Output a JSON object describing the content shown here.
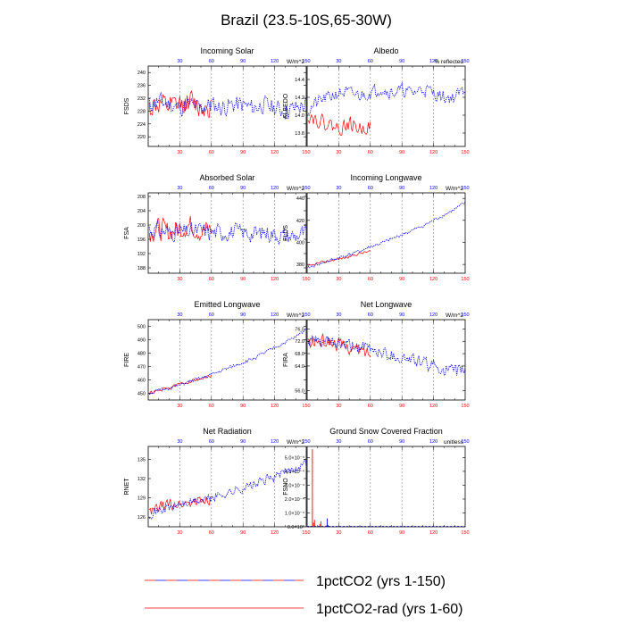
{
  "figure": {
    "title": "Brazil (23.5-10S,65-30W)",
    "legend": [
      {
        "label": "1pctCO2 (yrs 1-150)",
        "color": "#0000ff",
        "style": "dashed"
      },
      {
        "label": "1pctCO2-rad (yrs 1-60)",
        "color": "#ff0000",
        "style": "solid"
      }
    ]
  },
  "colors": {
    "series_1pctCO2": "#0000ff",
    "series_rad": "#ff0000",
    "axis": "#000000",
    "grid": "#888888"
  },
  "chart_data": [
    {
      "type": "line",
      "title": "Incoming Solar",
      "ylabel": "FSDS",
      "units": "W/m^2",
      "xlim": [
        0,
        150
      ],
      "ylim": [
        217,
        242
      ],
      "yticks": [
        220,
        224,
        228,
        232,
        236,
        240
      ],
      "ytick_labels": [
        "220",
        "224",
        "228",
        "232",
        "236",
        "240"
      ],
      "xticks_top": [
        30,
        60,
        90,
        120,
        150
      ],
      "xticks_bottom": [
        30,
        60,
        90,
        120,
        150
      ],
      "series": [
        {
          "key": "b",
          "x_end": 150,
          "y_anchor_x": [
            1,
            10,
            20,
            30,
            40,
            50,
            60,
            70,
            80,
            90,
            100,
            110,
            120,
            130,
            140,
            150
          ],
          "y_anchor": [
            230,
            231,
            230,
            229,
            230,
            229,
            230,
            229,
            230,
            230,
            229,
            230,
            229,
            228,
            229,
            230
          ],
          "amp": 4.5,
          "seed": 11
        },
        {
          "key": "r",
          "x_end": 60,
          "y_anchor_x": [
            1,
            10,
            20,
            30,
            40,
            50,
            60
          ],
          "y_anchor": [
            229,
            230,
            229,
            230,
            231,
            229,
            230
          ],
          "amp": 6,
          "seed": 12
        }
      ]
    },
    {
      "type": "line",
      "title": "Albedo",
      "ylabel": "ALBEDO",
      "units": "% reflected",
      "xlim": [
        0,
        150
      ],
      "ylim": [
        13.65,
        14.55
      ],
      "yticks": [
        13.8,
        14.0,
        14.2,
        14.4
      ],
      "ytick_labels": [
        "13.8",
        "14.0",
        "14.2",
        "14.4"
      ],
      "xticks_top": [
        30,
        60,
        90,
        120,
        150
      ],
      "xticks_bottom": [
        30,
        60,
        90,
        120,
        150
      ],
      "series": [
        {
          "key": "b",
          "x_end": 150,
          "y_anchor_x": [
            1,
            10,
            20,
            30,
            40,
            50,
            60,
            70,
            80,
            90,
            100,
            110,
            120,
            130,
            140,
            150
          ],
          "y_anchor": [
            14.05,
            14.15,
            14.2,
            14.25,
            14.25,
            14.22,
            14.25,
            14.3,
            14.25,
            14.28,
            14.25,
            14.3,
            14.25,
            14.2,
            14.2,
            14.3
          ],
          "amp": 0.12,
          "seed": 21
        },
        {
          "key": "r",
          "x_end": 60,
          "y_anchor_x": [
            1,
            10,
            20,
            30,
            40,
            50,
            60
          ],
          "y_anchor": [
            14.0,
            13.95,
            13.9,
            13.85,
            13.9,
            13.85,
            13.88
          ],
          "amp": 0.13,
          "seed": 22
        }
      ]
    },
    {
      "type": "line",
      "title": "Absorbed Solar",
      "ylabel": "FSA",
      "units": "W/m^2",
      "xlim": [
        0,
        150
      ],
      "ylim": [
        186.5,
        209
      ],
      "yticks": [
        188,
        192,
        196,
        200,
        204,
        208
      ],
      "ytick_labels": [
        "188",
        "192",
        "196",
        "200",
        "204",
        "208"
      ],
      "xticks_top": [
        30,
        60,
        90,
        120,
        150
      ],
      "xticks_bottom": [
        30,
        60,
        90,
        120,
        150
      ],
      "series": [
        {
          "key": "b",
          "x_end": 150,
          "y_anchor_x": [
            1,
            10,
            20,
            30,
            40,
            50,
            60,
            70,
            80,
            90,
            100,
            110,
            120,
            130,
            140,
            150
          ],
          "y_anchor": [
            199,
            198.5,
            198,
            198,
            198,
            198.5,
            198,
            198,
            198,
            198,
            197.5,
            198,
            197.5,
            197,
            197,
            198
          ],
          "amp": 4,
          "seed": 31
        },
        {
          "key": "r",
          "x_end": 60,
          "y_anchor_x": [
            1,
            10,
            20,
            30,
            40,
            50,
            60
          ],
          "y_anchor": [
            198,
            199,
            198,
            199,
            200,
            198,
            199
          ],
          "amp": 5,
          "seed": 32
        }
      ]
    },
    {
      "type": "line",
      "title": "Incoming Longwave",
      "ylabel": "FLDS",
      "units": "W/m^2",
      "xlim": [
        0,
        150
      ],
      "ylim": [
        372,
        445
      ],
      "yticks": [
        380,
        400,
        420,
        440
      ],
      "ytick_labels": [
        "380",
        "400",
        "420",
        "440"
      ],
      "xticks_top": [
        30,
        60,
        90,
        120,
        150
      ],
      "xticks_bottom": [
        30,
        60,
        90,
        120,
        150
      ],
      "series": [
        {
          "key": "b",
          "x_end": 150,
          "y_anchor_x": [
            1,
            10,
            20,
            30,
            40,
            50,
            60,
            70,
            80,
            90,
            100,
            110,
            120,
            130,
            140,
            150
          ],
          "y_anchor": [
            377,
            380,
            383,
            386,
            389,
            392,
            396,
            399,
            403,
            407,
            411,
            415,
            420,
            425,
            430,
            436
          ],
          "amp": 2.5,
          "seed": 41
        },
        {
          "key": "r",
          "x_end": 60,
          "y_anchor_x": [
            1,
            10,
            20,
            30,
            40,
            50,
            60
          ],
          "y_anchor": [
            378,
            381,
            383,
            385,
            387,
            390,
            392
          ],
          "amp": 2,
          "seed": 42
        }
      ]
    },
    {
      "type": "line",
      "title": "Emitted Longwave",
      "ylabel": "FIRE",
      "units": "W/m^2",
      "xlim": [
        0,
        150
      ],
      "ylim": [
        445,
        505
      ],
      "yticks": [
        450,
        460,
        470,
        480,
        490,
        500
      ],
      "ytick_labels": [
        "450",
        "460",
        "470",
        "480",
        "490",
        "500"
      ],
      "xticks_top": [
        30,
        60,
        90,
        120,
        150
      ],
      "xticks_bottom": [
        30,
        60,
        90,
        120,
        150
      ],
      "series": [
        {
          "key": "b",
          "x_end": 150,
          "y_anchor_x": [
            1,
            10,
            20,
            30,
            40,
            50,
            60,
            70,
            80,
            90,
            100,
            110,
            120,
            130,
            140,
            150
          ],
          "y_anchor": [
            450,
            452,
            454,
            456,
            459,
            461,
            464,
            467,
            470,
            473,
            476,
            480,
            484,
            488,
            492,
            498
          ],
          "amp": 2.2,
          "seed": 51
        },
        {
          "key": "r",
          "x_end": 60,
          "y_anchor_x": [
            1,
            10,
            20,
            30,
            40,
            50,
            60
          ],
          "y_anchor": [
            450,
            452,
            454,
            457,
            459,
            461,
            463
          ],
          "amp": 2,
          "seed": 52
        }
      ]
    },
    {
      "type": "line",
      "title": "Net Longwave",
      "ylabel": "FIRA",
      "units": "W/m^2",
      "xlim": [
        0,
        150
      ],
      "ylim": [
        53,
        79
      ],
      "yticks": [
        56.0,
        64.0,
        68.0,
        72.0,
        76.0
      ],
      "ytick_labels": [
        "56.0",
        "64.0",
        "68.0",
        "72.0",
        "76.0"
      ],
      "xticks_top": [
        30,
        60,
        90,
        120,
        150
      ],
      "xticks_bottom": [
        30,
        60,
        90,
        120,
        150
      ],
      "series": [
        {
          "key": "b",
          "x_end": 150,
          "y_anchor_x": [
            1,
            10,
            20,
            30,
            40,
            50,
            60,
            70,
            80,
            90,
            100,
            110,
            120,
            130,
            140,
            150
          ],
          "y_anchor": [
            72,
            72,
            71.5,
            71,
            70.5,
            70,
            69.5,
            68.5,
            67.5,
            66.5,
            66,
            65,
            64,
            63,
            62,
            63
          ],
          "amp": 3.5,
          "seed": 61
        },
        {
          "key": "r",
          "x_end": 60,
          "y_anchor_x": [
            1,
            10,
            20,
            30,
            40,
            50,
            60
          ],
          "y_anchor": [
            71,
            72,
            72,
            71,
            70,
            69,
            68
          ],
          "amp": 3.5,
          "seed": 62
        }
      ]
    },
    {
      "type": "line",
      "title": "Net Radiation",
      "ylabel": "RNET",
      "units": "W/m^2",
      "xlim": [
        0,
        150
      ],
      "ylim": [
        124.5,
        137
      ],
      "yticks": [
        126,
        129,
        132,
        135
      ],
      "ytick_labels": [
        "126",
        "129",
        "132",
        "135"
      ],
      "xticks_top": [
        30,
        60,
        90,
        120,
        150
      ],
      "xticks_bottom": [
        30,
        60,
        90,
        120,
        150
      ],
      "series": [
        {
          "key": "b",
          "x_end": 150,
          "y_anchor_x": [
            1,
            10,
            20,
            30,
            40,
            50,
            60,
            70,
            80,
            90,
            100,
            110,
            120,
            130,
            140,
            150
          ],
          "y_anchor": [
            126.5,
            127,
            127.5,
            128,
            128.3,
            128.6,
            129,
            129.5,
            130,
            130.5,
            131,
            131.7,
            132.3,
            133,
            133.7,
            134.5
          ],
          "amp": 1.2,
          "seed": 71
        },
        {
          "key": "r",
          "x_end": 60,
          "y_anchor_x": [
            1,
            10,
            20,
            30,
            40,
            50,
            60
          ],
          "y_anchor": [
            126.5,
            127.5,
            128,
            128,
            128.3,
            128.5,
            129
          ],
          "amp": 1.5,
          "seed": 72
        }
      ]
    },
    {
      "type": "line",
      "title": "Ground Snow Covered Fraction",
      "ylabel": "FSNO",
      "units": "unitless",
      "xlim": [
        0,
        150
      ],
      "ylim": [
        0,
        0.00058
      ],
      "yticks": [
        0,
        0.0001,
        0.0002,
        0.0003,
        0.0004,
        0.0005
      ],
      "ytick_labels": [
        "0.0×10⁰",
        "1.0×10⁻⁴",
        "2.0×10⁻⁴",
        "3.0×10⁻⁴",
        "4.0×10⁻⁴",
        "5.0×10⁻⁴"
      ],
      "xticks_top": [
        30,
        60,
        90,
        120,
        150
      ],
      "xticks_bottom": [
        30,
        60,
        90,
        120,
        150
      ],
      "spikes": [
        {
          "key": "r",
          "x": [
            5,
            6,
            7,
            8,
            12,
            13,
            18
          ],
          "y": [
            0.00056,
            3e-05,
            5e-05,
            0.0,
            2e-05,
            4e-05,
            1e-05
          ]
        },
        {
          "key": "b",
          "x": [
            3,
            10,
            19,
            20,
            30,
            45,
            60
          ],
          "y": [
            5e-06,
            5e-06,
            6e-05,
            1e-05,
            5e-06,
            4e-06,
            3e-06
          ]
        }
      ]
    }
  ]
}
